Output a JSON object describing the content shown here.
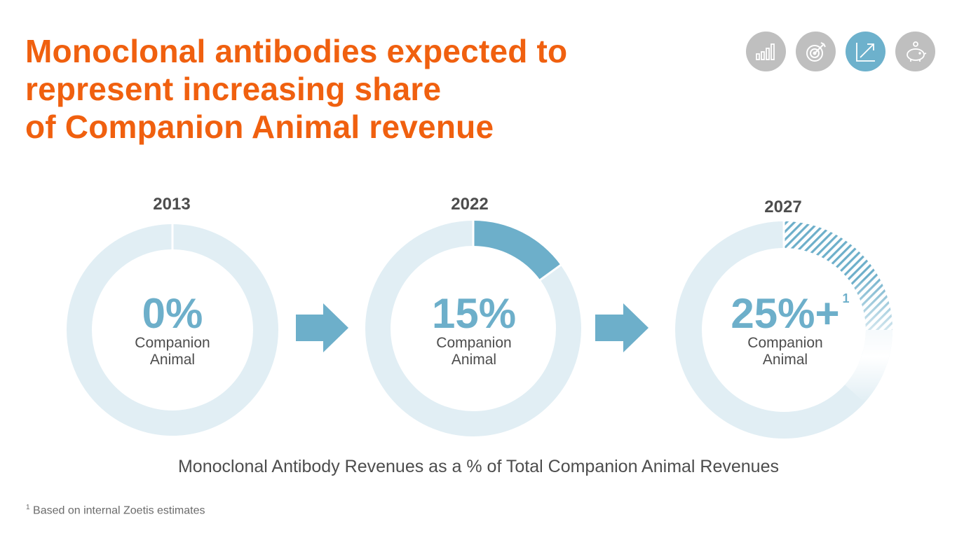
{
  "title": {
    "line1": "Monoclonal antibodies expected to",
    "line2": "represent increasing share",
    "line3": "of Companion Animal revenue"
  },
  "nav_icons": [
    {
      "name": "bar-chart-icon",
      "active": false
    },
    {
      "name": "target-icon",
      "active": false
    },
    {
      "name": "growth-arrow-icon",
      "active": true
    },
    {
      "name": "piggy-bank-icon",
      "active": false
    }
  ],
  "colors": {
    "title": "#F0600F",
    "ring_track": "#E1EEF4",
    "ring_fill": "#6DAFCA",
    "text_dark": "#4D4D4D"
  },
  "chart_data": {
    "type": "pie",
    "title": "Monoclonal Antibody Revenues as a % of Total Companion Animal Revenues",
    "categories": [
      "2013",
      "2022",
      "2027"
    ],
    "values": [
      0,
      15,
      25
    ],
    "series": [
      {
        "year": "2013",
        "value": 0,
        "label": "0%",
        "sublabel_1": "Companion",
        "sublabel_2": "Animal",
        "projected": false
      },
      {
        "year": "2022",
        "value": 15,
        "label": "15%",
        "sublabel_1": "Companion",
        "sublabel_2": "Animal",
        "projected": false
      },
      {
        "year": "2027",
        "value": 25,
        "label": "25%+",
        "footnote_marker": "1",
        "sublabel_1": "Companion",
        "sublabel_2": "Animal",
        "projected": true
      }
    ]
  },
  "caption": "Monoclonal Antibody Revenues as a % of Total Companion Animal Revenues",
  "footnote": {
    "marker": "1",
    "text": "Based on internal Zoetis estimates"
  }
}
